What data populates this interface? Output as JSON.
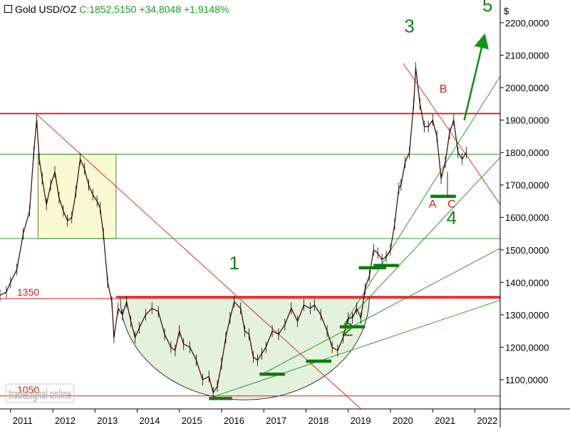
{
  "header": {
    "symbol": "Gold USD/OZ",
    "quote": "C:1852,5150 +34,8048 +1,9148%"
  },
  "watermark": "tradesignal online",
  "chart_data": {
    "type": "line",
    "title": "Gold USD/OZ",
    "currency_label": "$",
    "y_axis_side": "right",
    "ylim": [
      1010,
      2270
    ],
    "xlim": [
      2010.75,
      2022.6
    ],
    "x_ticks": [
      "2011",
      "2012",
      "2013",
      "2014",
      "2015",
      "2016",
      "2017",
      "2018",
      "2019",
      "2020",
      "2021",
      "2022"
    ],
    "y_ticks": [
      "1100,0000",
      "1200,0000",
      "1300,0000",
      "1400,0000",
      "1500,0000",
      "1600,0000",
      "1700,0000",
      "1800,0000",
      "1900,0000",
      "2000,0000",
      "2100,0000",
      "2200,0000"
    ],
    "series": [
      {
        "color": "#000000",
        "x": [
          2010.75,
          2010.9,
          2011.0,
          2011.15,
          2011.3,
          2011.45,
          2011.55,
          2011.62,
          2011.68,
          2011.75,
          2011.85,
          2011.95,
          2012.05,
          2012.15,
          2012.25,
          2012.35,
          2012.45,
          2012.55,
          2012.65,
          2012.75,
          2012.85,
          2012.95,
          2013.05,
          2013.12,
          2013.2,
          2013.3,
          2013.4,
          2013.45,
          2013.55,
          2013.65,
          2013.75,
          2013.85,
          2013.95,
          2014.05,
          2014.2,
          2014.35,
          2014.5,
          2014.65,
          2014.8,
          2014.9,
          2015.0,
          2015.1,
          2015.25,
          2015.4,
          2015.55,
          2015.7,
          2015.8,
          2015.9,
          2016.0,
          2016.1,
          2016.2,
          2016.3,
          2016.45,
          2016.55,
          2016.65,
          2016.75,
          2016.85,
          2016.95,
          2017.05,
          2017.2,
          2017.35,
          2017.5,
          2017.65,
          2017.8,
          2017.95,
          2018.1,
          2018.2,
          2018.35,
          2018.5,
          2018.62,
          2018.75,
          2018.88,
          2019.0,
          2019.1,
          2019.2,
          2019.3,
          2019.4,
          2019.5,
          2019.6,
          2019.7,
          2019.8,
          2019.9,
          2020.0,
          2020.1,
          2020.2,
          2020.25,
          2020.35,
          2020.45,
          2020.55,
          2020.6,
          2020.7,
          2020.8,
          2020.9,
          2021.0,
          2021.1,
          2021.2,
          2021.3,
          2021.4,
          2021.5,
          2021.6,
          2021.7,
          2021.8
        ],
        "y": [
          1360,
          1370,
          1400,
          1440,
          1550,
          1620,
          1800,
          1900,
          1780,
          1720,
          1640,
          1700,
          1740,
          1660,
          1620,
          1590,
          1600,
          1680,
          1780,
          1750,
          1700,
          1670,
          1650,
          1630,
          1550,
          1400,
          1340,
          1230,
          1320,
          1300,
          1340,
          1280,
          1230,
          1260,
          1300,
          1320,
          1310,
          1240,
          1200,
          1190,
          1250,
          1210,
          1200,
          1160,
          1100,
          1110,
          1060,
          1080,
          1150,
          1230,
          1290,
          1340,
          1320,
          1250,
          1240,
          1170,
          1160,
          1180,
          1200,
          1250,
          1240,
          1270,
          1320,
          1280,
          1330,
          1320,
          1330,
          1300,
          1250,
          1200,
          1190,
          1230,
          1290,
          1290,
          1320,
          1290,
          1380,
          1420,
          1500,
          1490,
          1470,
          1480,
          1500,
          1580,
          1690,
          1700,
          1770,
          1800,
          1950,
          2060,
          1950,
          1880,
          1880,
          1900,
          1850,
          1720,
          1770,
          1860,
          1900,
          1800,
          1780,
          1800
        ]
      }
    ],
    "annotations": [
      {
        "text": "1",
        "x": 2016.3,
        "y": 1440,
        "color": "#1a7f1a",
        "kind": "wave"
      },
      {
        "text": "2",
        "x": 2019.0,
        "y": 1235,
        "color": "#1a7f1a",
        "kind": "wave"
      },
      {
        "text": "3",
        "x": 2020.45,
        "y": 2170,
        "color": "#1a7f1a",
        "kind": "wave"
      },
      {
        "text": "4",
        "x": 2021.45,
        "y": 1580,
        "color": "#1a7f1a",
        "kind": "wave"
      },
      {
        "text": "5",
        "x": 2022.3,
        "y": 2235,
        "color": "#1a7f1a",
        "kind": "wave"
      },
      {
        "text": "A",
        "x": 2021.0,
        "y": 1630,
        "color": "#d21e1e",
        "kind": "sub"
      },
      {
        "text": "B",
        "x": 2021.25,
        "y": 1985,
        "color": "#d21e1e",
        "kind": "sub"
      },
      {
        "text": "C",
        "x": 2021.45,
        "y": 1630,
        "color": "#d21e1e",
        "kind": "sub"
      }
    ],
    "level_labels": [
      {
        "text": "1350",
        "y": 1350,
        "color": "#d21e1e"
      },
      {
        "text": "1050",
        "y": 1050,
        "color": "#d21e1e"
      }
    ],
    "levels": [
      {
        "y": 1920,
        "color": "#d21e1e",
        "width": 1.8
      },
      {
        "y": 1795,
        "color": "#1a8f1a",
        "width": 0.9
      },
      {
        "y": 1535,
        "color": "#1a8f1a",
        "width": 0.9
      },
      {
        "y": 1350,
        "color": "#d21e1e",
        "width": 1
      },
      {
        "y": 1050,
        "color": "#d21e1e",
        "width": 1
      }
    ],
    "resistance_segment": {
      "x0": 2013.5,
      "x1": 2022.6,
      "y": 1355,
      "color": "#d21e1e"
    },
    "trendlines": [
      {
        "x0": 2011.6,
        "y0": 1920,
        "x1": 2019.3,
        "y1": 1010,
        "color": "#d21e1e"
      },
      {
        "x0": 2020.3,
        "y0": 2075,
        "x1": 2022.6,
        "y1": 1640,
        "color": "#d21e1e"
      },
      {
        "x0": 2015.9,
        "y0": 1052,
        "x1": 2022.6,
        "y1": 1345,
        "color": "#1a8f1a"
      },
      {
        "x0": 2017.0,
        "y0": 1120,
        "x1": 2022.6,
        "y1": 1505,
        "color": "#1a8f1a"
      },
      {
        "x0": 2018.9,
        "y0": 1270,
        "x1": 2022.6,
        "y1": 1785,
        "color": "#1a8f1a"
      },
      {
        "x0": 2018.9,
        "y0": 1270,
        "x1": 2022.6,
        "y1": 2035,
        "color": "#1a8f1a"
      }
    ],
    "support_bars": [
      {
        "x0": 2015.7,
        "x1": 2016.25,
        "y": 1042
      },
      {
        "x0": 2016.9,
        "x1": 2017.5,
        "y": 1117
      },
      {
        "x0": 2018.0,
        "x1": 2018.6,
        "y": 1157
      },
      {
        "x0": 2018.8,
        "x1": 2019.4,
        "y": 1263
      },
      {
        "x0": 2019.25,
        "x1": 2019.9,
        "y": 1445
      },
      {
        "x0": 2019.6,
        "x1": 2020.2,
        "y": 1452
      },
      {
        "x0": 2020.95,
        "x1": 2021.55,
        "y": 1665
      }
    ],
    "range_box": {
      "x0": 2011.65,
      "x1": 2013.5,
      "y0": 1535,
      "y1": 1795,
      "fill": "#fafad2",
      "stroke": "#556b2f"
    },
    "bowl": {
      "cx": 2016.55,
      "y_top": 1355,
      "y_bottom": 1038,
      "x_half": 2.95,
      "fill": "#e3f1dd"
    },
    "projection_arrow": {
      "x0": 2021.75,
      "y0": 1900,
      "x1": 2022.2,
      "y1": 2145,
      "color": "#1a8f1a"
    },
    "grid": false,
    "legend": "none"
  }
}
